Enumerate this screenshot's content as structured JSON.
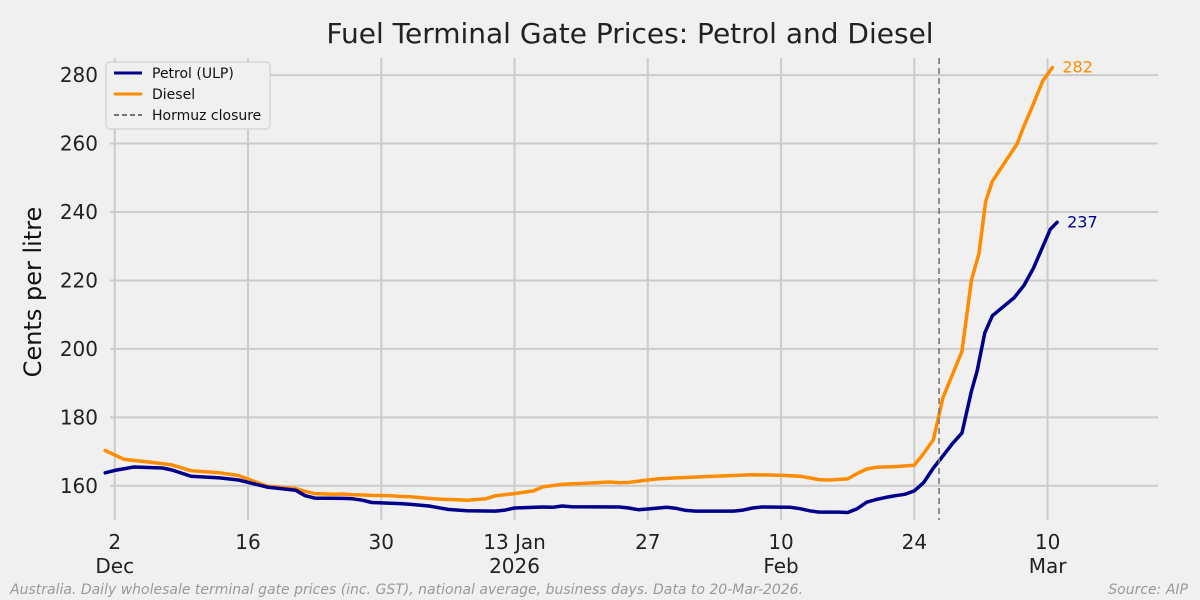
{
  "chart_data": {
    "type": "line",
    "title": "Fuel Terminal Gate Prices: Petrol and Diesel",
    "xlabel": "",
    "ylabel": "Cents per litre",
    "footnote": "Australia. Daily wholesale terminal gate prices (inc. GST), national average, business days. Data to 20-Mar-2026.",
    "source": "Source: AIP",
    "x_unit": "days since 2025-12-01",
    "xlim": [
      0.5,
      110.6
    ],
    "ylim": [
      150,
      285
    ],
    "yticks": [
      160,
      180,
      200,
      220,
      240,
      260,
      280
    ],
    "xticks": [
      {
        "x": 1,
        "label": "2",
        "sublabel": "Dec"
      },
      {
        "x": 15,
        "label": "16",
        "sublabel": ""
      },
      {
        "x": 29,
        "label": "30",
        "sublabel": ""
      },
      {
        "x": 43,
        "label": "13 Jan",
        "sublabel": "2026"
      },
      {
        "x": 57,
        "label": "27",
        "sublabel": ""
      },
      {
        "x": 71,
        "label": "10",
        "sublabel": "Feb"
      },
      {
        "x": 85,
        "label": "24",
        "sublabel": ""
      },
      {
        "x": 99,
        "label": "10",
        "sublabel": "Mar"
      }
    ],
    "grid": true,
    "legend_location": "top-left",
    "series": [
      {
        "name": "Petrol (ULP)",
        "color": "#00008b",
        "end_label": "237",
        "points": [
          [
            0,
            163.8
          ],
          [
            1,
            164.5
          ],
          [
            3,
            165.5
          ],
          [
            6,
            165.2
          ],
          [
            7,
            164.6
          ],
          [
            9,
            162.8
          ],
          [
            12,
            162.3
          ],
          [
            14,
            161.7
          ],
          [
            17,
            159.6
          ],
          [
            20,
            158.7
          ],
          [
            21,
            157.1
          ],
          [
            22,
            156.4
          ],
          [
            25,
            156.3
          ],
          [
            26,
            156.2
          ],
          [
            27,
            155.8
          ],
          [
            28,
            155.1
          ],
          [
            31,
            154.8
          ],
          [
            32,
            154.6
          ],
          [
            34,
            154.1
          ],
          [
            35,
            153.6
          ],
          [
            36,
            153.1
          ],
          [
            38,
            152.7
          ],
          [
            41,
            152.6
          ],
          [
            42,
            152.9
          ],
          [
            43,
            153.5
          ],
          [
            46,
            153.8
          ],
          [
            47,
            153.7
          ],
          [
            48,
            154.1
          ],
          [
            49,
            153.9
          ],
          [
            54,
            153.8
          ],
          [
            55,
            153.5
          ],
          [
            56,
            153.0
          ],
          [
            57,
            153.2
          ],
          [
            59,
            153.7
          ],
          [
            60,
            153.4
          ],
          [
            61,
            152.8
          ],
          [
            62,
            152.6
          ],
          [
            66,
            152.6
          ],
          [
            67,
            152.9
          ],
          [
            68,
            153.5
          ],
          [
            69,
            153.8
          ],
          [
            72,
            153.7
          ],
          [
            73,
            153.3
          ],
          [
            74,
            152.7
          ],
          [
            75,
            152.3
          ],
          [
            76,
            152.3
          ],
          [
            77,
            152.3
          ],
          [
            78,
            152.2
          ],
          [
            79,
            153.3
          ],
          [
            80,
            155.2
          ],
          [
            81,
            156.0
          ],
          [
            82,
            156.6
          ],
          [
            83,
            157.1
          ],
          [
            84,
            157.5
          ],
          [
            85,
            158.5
          ],
          [
            86,
            161.0
          ],
          [
            87,
            165.2
          ],
          [
            88,
            168.7
          ],
          [
            89,
            172.3
          ],
          [
            90,
            175.4
          ],
          [
            91,
            187.6
          ],
          [
            91.6,
            193.5
          ],
          [
            92.4,
            204.7
          ],
          [
            93.2,
            209.7
          ],
          [
            95.5,
            215.0
          ],
          [
            96.5,
            218.5
          ],
          [
            97.5,
            223.5
          ],
          [
            98.5,
            229.9
          ],
          [
            99.3,
            235.0
          ],
          [
            100,
            237.0
          ]
        ]
      },
      {
        "name": "Diesel",
        "color": "#ff8c00",
        "end_label": "282",
        "points": [
          [
            0,
            170.3
          ],
          [
            2,
            167.7
          ],
          [
            5,
            166.8
          ],
          [
            7,
            166.1
          ],
          [
            9,
            164.4
          ],
          [
            12,
            163.8
          ],
          [
            14,
            163.0
          ],
          [
            17,
            159.9
          ],
          [
            20,
            159.2
          ],
          [
            21,
            158.4
          ],
          [
            22,
            157.7
          ],
          [
            24,
            157.5
          ],
          [
            25,
            157.6
          ],
          [
            26,
            157.4
          ],
          [
            27,
            157.3
          ],
          [
            28,
            157.2
          ],
          [
            30,
            157.1
          ],
          [
            31,
            156.9
          ],
          [
            32,
            156.8
          ],
          [
            35,
            156.1
          ],
          [
            37,
            155.9
          ],
          [
            38,
            155.8
          ],
          [
            40,
            156.2
          ],
          [
            41,
            157.1
          ],
          [
            43,
            157.7
          ],
          [
            45,
            158.5
          ],
          [
            46,
            159.7
          ],
          [
            48,
            160.4
          ],
          [
            51,
            160.8
          ],
          [
            53,
            161.1
          ],
          [
            54,
            160.9
          ],
          [
            55,
            161.0
          ],
          [
            57,
            161.7
          ],
          [
            58,
            162.0
          ],
          [
            60,
            162.3
          ],
          [
            64,
            162.8
          ],
          [
            68,
            163.2
          ],
          [
            71,
            163.1
          ],
          [
            73,
            162.8
          ],
          [
            74,
            162.3
          ],
          [
            75,
            161.8
          ],
          [
            76,
            161.7
          ],
          [
            78,
            162.0
          ],
          [
            79,
            163.6
          ],
          [
            80,
            164.9
          ],
          [
            81,
            165.4
          ],
          [
            83,
            165.6
          ],
          [
            85,
            166.0
          ],
          [
            86,
            169.5
          ],
          [
            87,
            173.5
          ],
          [
            88,
            185.7
          ],
          [
            90,
            199.2
          ],
          [
            91,
            220.0
          ],
          [
            91.8,
            227.9
          ],
          [
            92.5,
            243.1
          ],
          [
            93.2,
            249.0
          ],
          [
            95.8,
            259.9
          ],
          [
            96.5,
            265.0
          ],
          [
            97.5,
            271.5
          ],
          [
            98.5,
            278.3
          ],
          [
            99.5,
            282.2
          ]
        ]
      }
    ],
    "vlines": [
      {
        "name": "Hormuz closure",
        "x": 87.6,
        "color": "#777777",
        "style": "dashed"
      }
    ]
  }
}
